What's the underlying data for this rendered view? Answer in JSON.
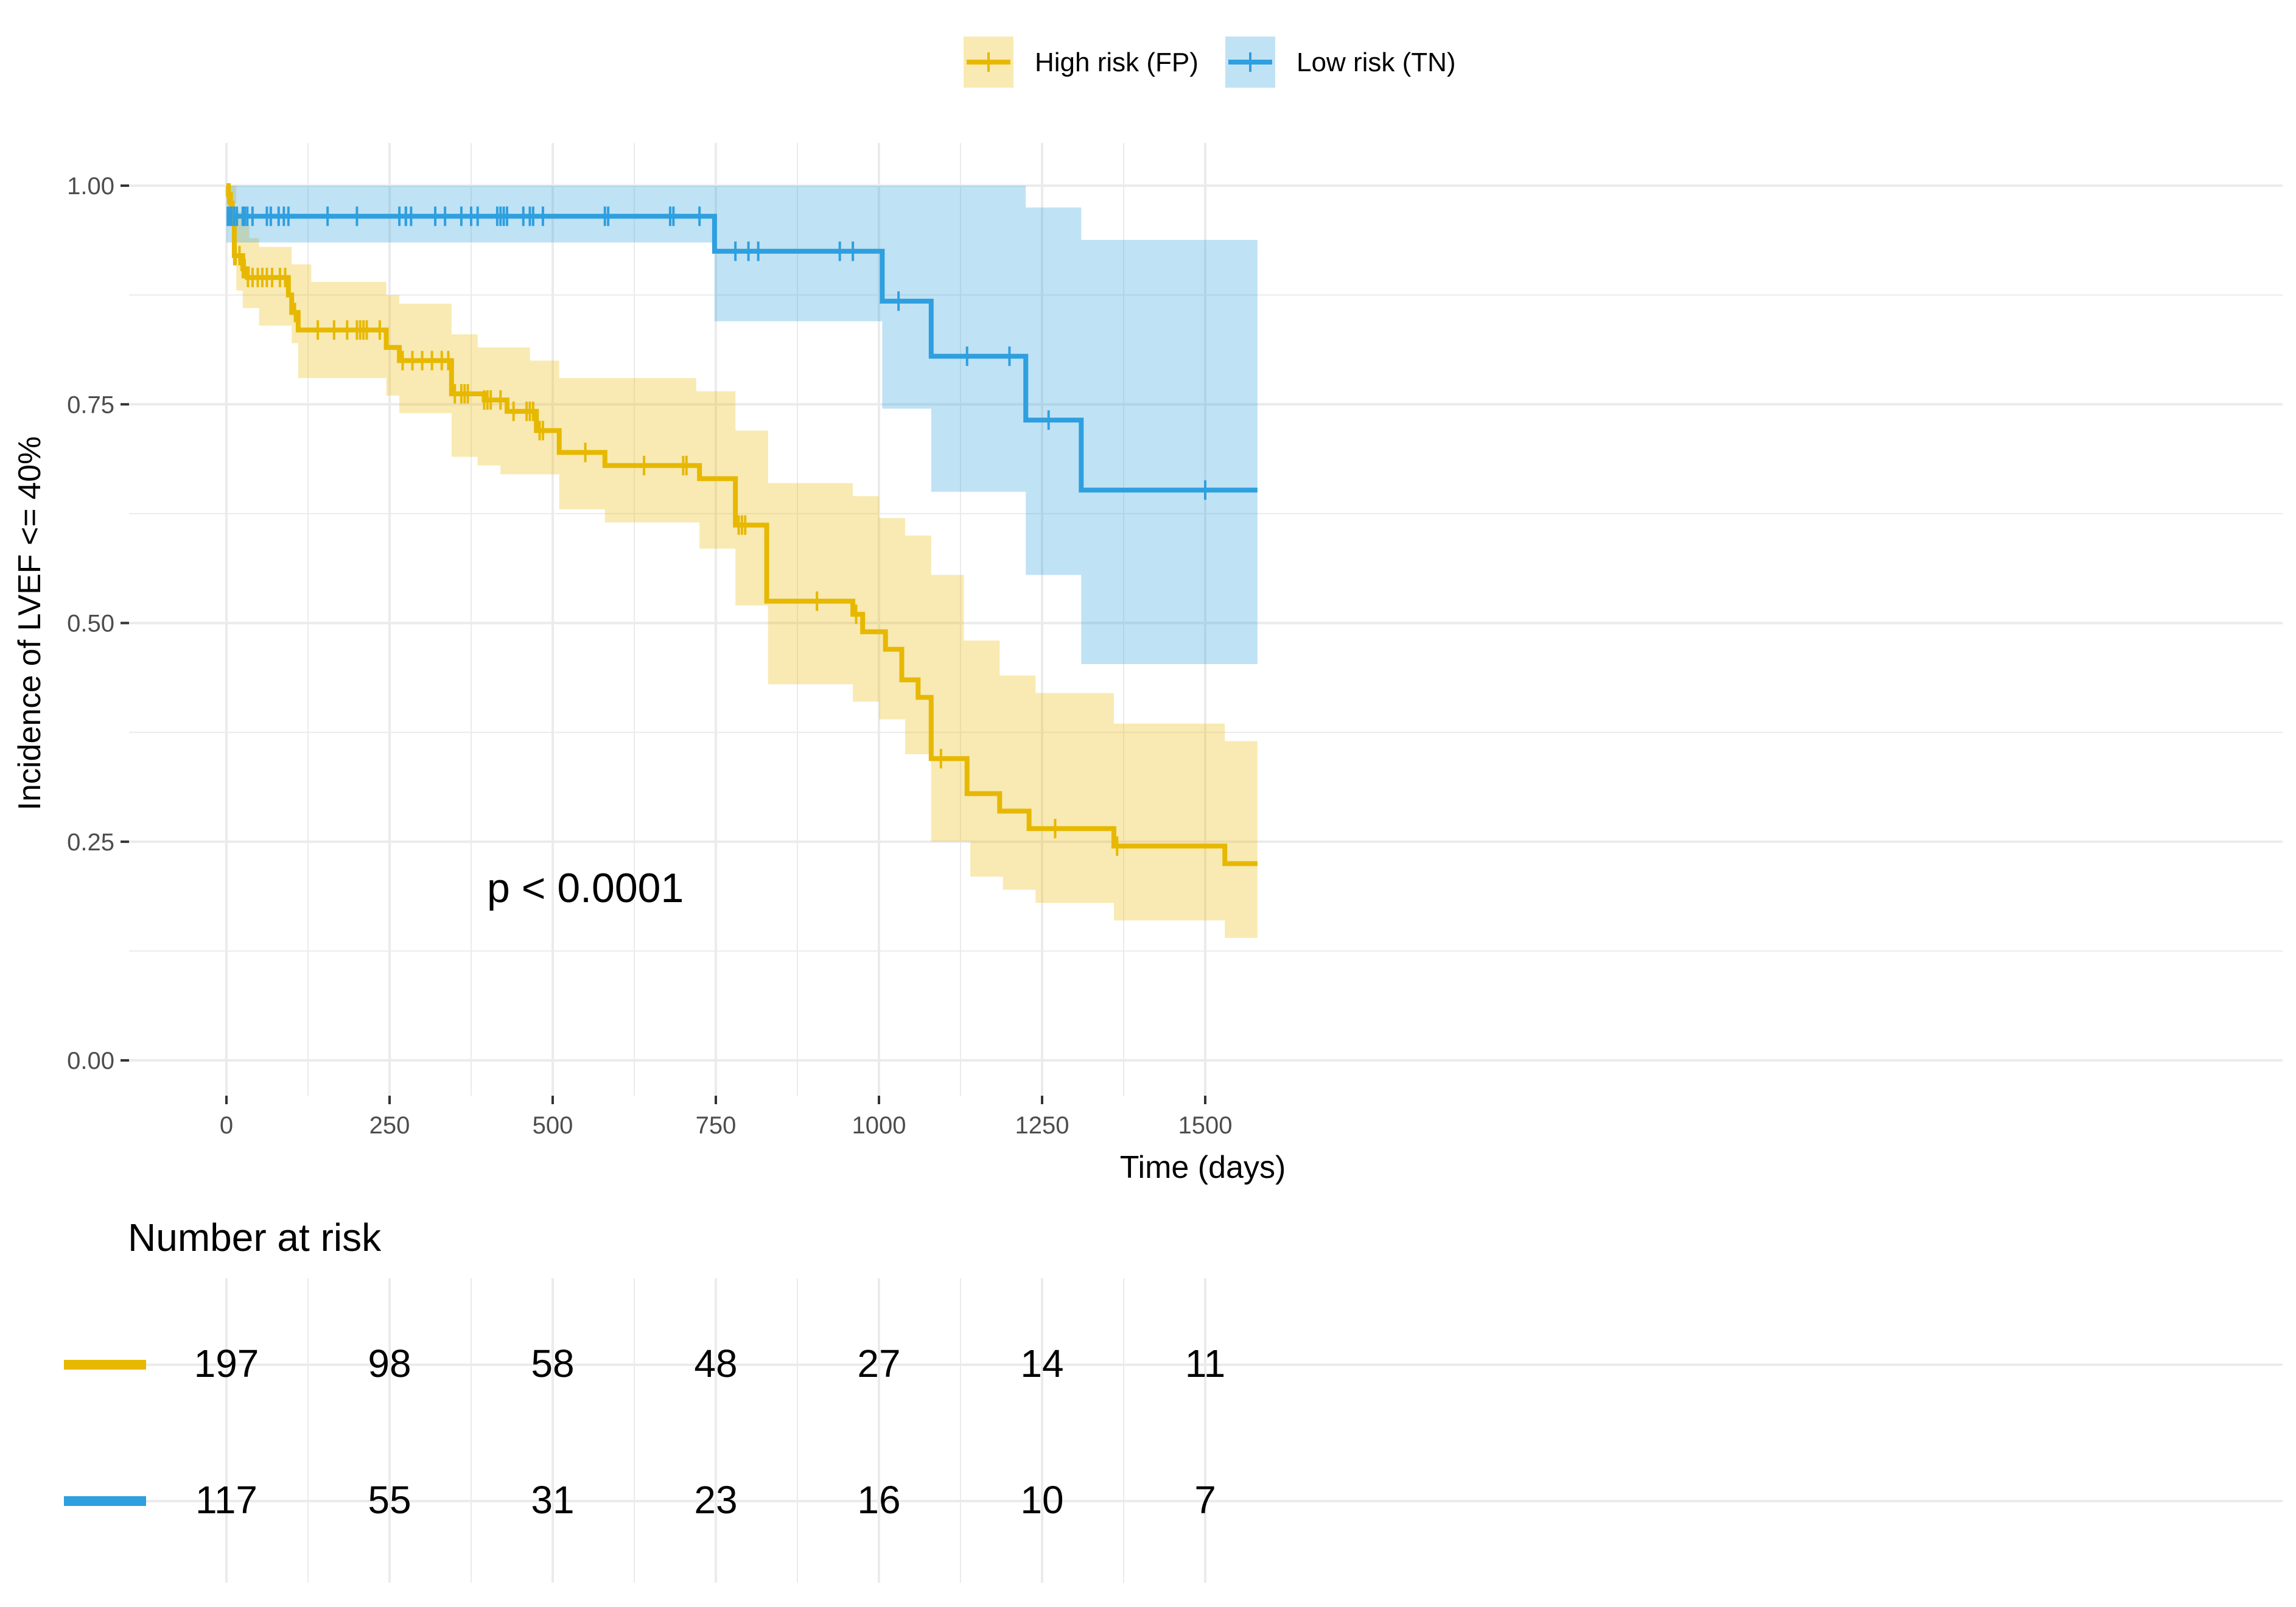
{
  "chart_data": {
    "type": "line",
    "subtype": "kaplan-meier-step",
    "xlabel": "Time (days)",
    "ylabel": "Incidence of LVEF <= 40%",
    "xlim": [
      -150,
      1580
    ],
    "ylim": [
      -0.04,
      1.05
    ],
    "x_ticks": [
      0,
      250,
      500,
      750,
      1000,
      1250,
      1500
    ],
    "y_ticks": [
      0,
      0.25,
      0.5,
      0.75,
      1.0
    ],
    "x_tick_labels": [
      "0",
      "250",
      "500",
      "750",
      "1000",
      "1250",
      "1500"
    ],
    "y_tick_labels": [
      "0.00",
      "0.25",
      "0.50",
      "0.75",
      "1.00"
    ],
    "grid": true,
    "legend_position": "top",
    "annotation": "p < 0.0001",
    "series": [
      {
        "name": "High risk (FP)",
        "color": "#E7B800",
        "steps": [
          [
            0,
            1.0
          ],
          [
            3,
            0.99
          ],
          [
            6,
            0.98
          ],
          [
            9,
            0.965
          ],
          [
            12,
            0.92
          ],
          [
            25,
            0.905
          ],
          [
            32,
            0.895
          ],
          [
            95,
            0.875
          ],
          [
            100,
            0.855
          ],
          [
            110,
            0.835
          ],
          [
            245,
            0.815
          ],
          [
            265,
            0.8
          ],
          [
            345,
            0.762
          ],
          [
            395,
            0.755
          ],
          [
            430,
            0.742
          ],
          [
            475,
            0.72
          ],
          [
            510,
            0.695
          ],
          [
            580,
            0.68
          ],
          [
            725,
            0.665
          ],
          [
            780,
            0.612
          ],
          [
            828,
            0.525
          ],
          [
            960,
            0.51
          ],
          [
            975,
            0.49
          ],
          [
            1010,
            0.47
          ],
          [
            1035,
            0.435
          ],
          [
            1060,
            0.415
          ],
          [
            1080,
            0.345
          ],
          [
            1135,
            0.305
          ],
          [
            1185,
            0.285
          ],
          [
            1230,
            0.265
          ],
          [
            1360,
            0.245
          ],
          [
            1530,
            0.225
          ],
          [
            1580,
            0.225
          ]
        ],
        "ci_upper": [
          [
            0,
            1.0
          ],
          [
            15,
            0.97
          ],
          [
            25,
            0.955
          ],
          [
            35,
            0.94
          ],
          [
            50,
            0.93
          ],
          [
            100,
            0.91
          ],
          [
            130,
            0.89
          ],
          [
            245,
            0.875
          ],
          [
            265,
            0.865
          ],
          [
            345,
            0.83
          ],
          [
            385,
            0.815
          ],
          [
            465,
            0.8
          ],
          [
            510,
            0.78
          ],
          [
            720,
            0.765
          ],
          [
            780,
            0.72
          ],
          [
            830,
            0.66
          ],
          [
            960,
            0.645
          ],
          [
            1000,
            0.62
          ],
          [
            1040,
            0.6
          ],
          [
            1080,
            0.555
          ],
          [
            1130,
            0.48
          ],
          [
            1185,
            0.44
          ],
          [
            1240,
            0.42
          ],
          [
            1360,
            0.385
          ],
          [
            1530,
            0.365
          ],
          [
            1580,
            0.365
          ]
        ],
        "ci_lower": [
          [
            0,
            0.98
          ],
          [
            15,
            0.88
          ],
          [
            25,
            0.86
          ],
          [
            50,
            0.84
          ],
          [
            100,
            0.82
          ],
          [
            110,
            0.78
          ],
          [
            245,
            0.76
          ],
          [
            265,
            0.74
          ],
          [
            345,
            0.69
          ],
          [
            385,
            0.68
          ],
          [
            420,
            0.67
          ],
          [
            510,
            0.63
          ],
          [
            580,
            0.615
          ],
          [
            725,
            0.585
          ],
          [
            780,
            0.52
          ],
          [
            830,
            0.43
          ],
          [
            960,
            0.41
          ],
          [
            1000,
            0.39
          ],
          [
            1040,
            0.35
          ],
          [
            1080,
            0.25
          ],
          [
            1140,
            0.21
          ],
          [
            1190,
            0.195
          ],
          [
            1240,
            0.18
          ],
          [
            1360,
            0.16
          ],
          [
            1530,
            0.14
          ],
          [
            1580,
            0.14
          ]
        ],
        "censor_x": [
          3,
          6,
          8,
          10,
          12,
          14,
          20,
          25,
          28,
          33,
          40,
          48,
          55,
          62,
          70,
          82,
          90,
          105,
          140,
          165,
          185,
          200,
          205,
          210,
          215,
          235,
          270,
          285,
          300,
          315,
          330,
          340,
          350,
          360,
          365,
          370,
          395,
          400,
          405,
          420,
          440,
          460,
          465,
          470,
          480,
          485,
          550,
          640,
          700,
          705,
          785,
          790,
          795,
          905,
          965,
          1095,
          1270,
          1365
        ],
        "risk_table": [
          197,
          98,
          58,
          48,
          27,
          14,
          11
        ]
      },
      {
        "name": "Low risk (TN)",
        "color": "#2E9FDF",
        "steps": [
          [
            0,
            0.965
          ],
          [
            748,
            0.925
          ],
          [
            1005,
            0.868
          ],
          [
            1080,
            0.805
          ],
          [
            1225,
            0.732
          ],
          [
            1310,
            0.652
          ],
          [
            1580,
            0.652
          ]
        ],
        "ci_upper": [
          [
            0,
            1.0
          ],
          [
            1080,
            1.0
          ],
          [
            1225,
            0.975
          ],
          [
            1310,
            0.938
          ],
          [
            1580,
            0.938
          ]
        ],
        "ci_lower": [
          [
            0,
            0.935
          ],
          [
            748,
            0.845
          ],
          [
            1005,
            0.745
          ],
          [
            1080,
            0.65
          ],
          [
            1225,
            0.555
          ],
          [
            1310,
            0.453
          ],
          [
            1580,
            0.453
          ]
        ],
        "censor_x": [
          2,
          5,
          8,
          12,
          16,
          25,
          28,
          32,
          40,
          62,
          68,
          80,
          88,
          95,
          155,
          200,
          265,
          275,
          275,
          283,
          320,
          335,
          360,
          375,
          385,
          415,
          420,
          425,
          430,
          455,
          465,
          470,
          485,
          580,
          585,
          680,
          685,
          725,
          780,
          800,
          815,
          940,
          960,
          1030,
          1135,
          1200,
          1260,
          1500
        ],
        "risk_table": [
          117,
          55,
          31,
          23,
          16,
          10,
          7
        ]
      }
    ],
    "risk_table_title": "Number at risk",
    "risk_table_times": [
      0,
      250,
      500,
      750,
      1000,
      1250,
      1500
    ]
  }
}
